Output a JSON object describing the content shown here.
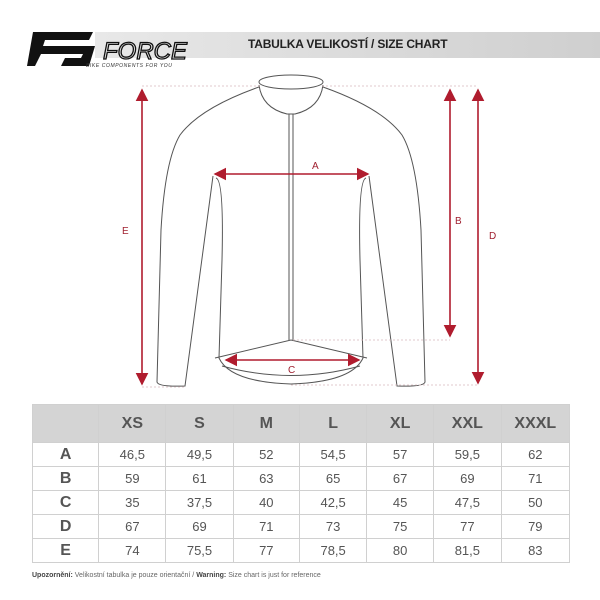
{
  "header": {
    "brand": "FORCE",
    "tagline": "BIKE COMPONENTS FOR YOU",
    "title": "TABULKA VELIKOSTÍ / SIZE CHART"
  },
  "diagram": {
    "labels": {
      "A": "A",
      "B": "B",
      "C": "C",
      "D": "D",
      "E": "E"
    },
    "arrow_color": "#b01c2e",
    "outline_color": "#555555"
  },
  "table": {
    "columns": [
      "XS",
      "S",
      "M",
      "L",
      "XL",
      "XXL",
      "XXXL"
    ],
    "rows": [
      {
        "label": "A",
        "values": [
          "46,5",
          "49,5",
          "52",
          "54,5",
          "57",
          "59,5",
          "62"
        ]
      },
      {
        "label": "B",
        "values": [
          "59",
          "61",
          "63",
          "65",
          "67",
          "69",
          "71"
        ]
      },
      {
        "label": "C",
        "values": [
          "35",
          "37,5",
          "40",
          "42,5",
          "45",
          "47,5",
          "50"
        ]
      },
      {
        "label": "D",
        "values": [
          "67",
          "69",
          "71",
          "73",
          "75",
          "77",
          "79"
        ]
      },
      {
        "label": "E",
        "values": [
          "74",
          "75,5",
          "77",
          "78,5",
          "80",
          "81,5",
          "83"
        ]
      }
    ]
  },
  "footer": {
    "warn_cz_label": "Upozornění:",
    "warn_cz": " Velikostní tabulka je pouze orientační / ",
    "warn_en_label": "Warning:",
    "warn_en": " Size chart is just for reference"
  }
}
